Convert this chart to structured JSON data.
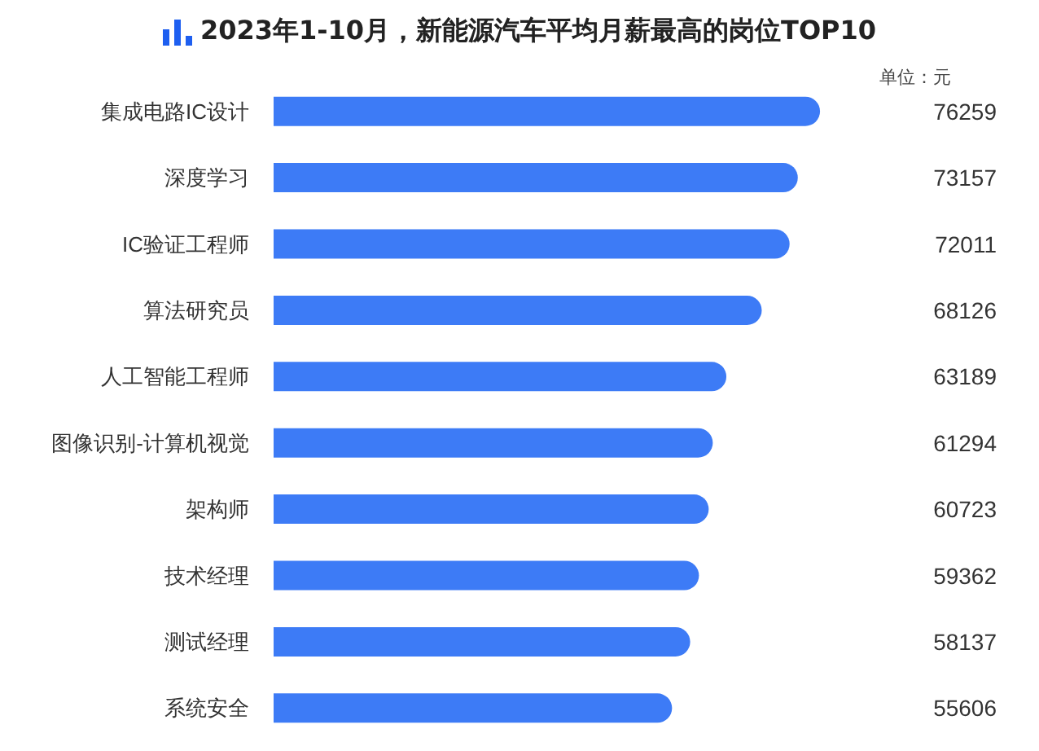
{
  "chart_data": {
    "type": "bar",
    "orientation": "horizontal",
    "title": "2023年1-10月，新能源汽车平均月薪最高的岗位TOP10",
    "annotations": [
      "单位：元"
    ],
    "categories": [
      "集成电路IC设计",
      "深度学习",
      "IC验证工程师",
      "算法研究员",
      "人工智能工程师",
      "图像识别-计算机视觉",
      "架构师",
      "技术经理",
      "测试经理",
      "系统安全"
    ],
    "values": [
      76259,
      73157,
      72011,
      68126,
      63189,
      61294,
      60723,
      59362,
      58137,
      55606
    ],
    "color": "#3d7bf6",
    "data_labels": true
  }
}
